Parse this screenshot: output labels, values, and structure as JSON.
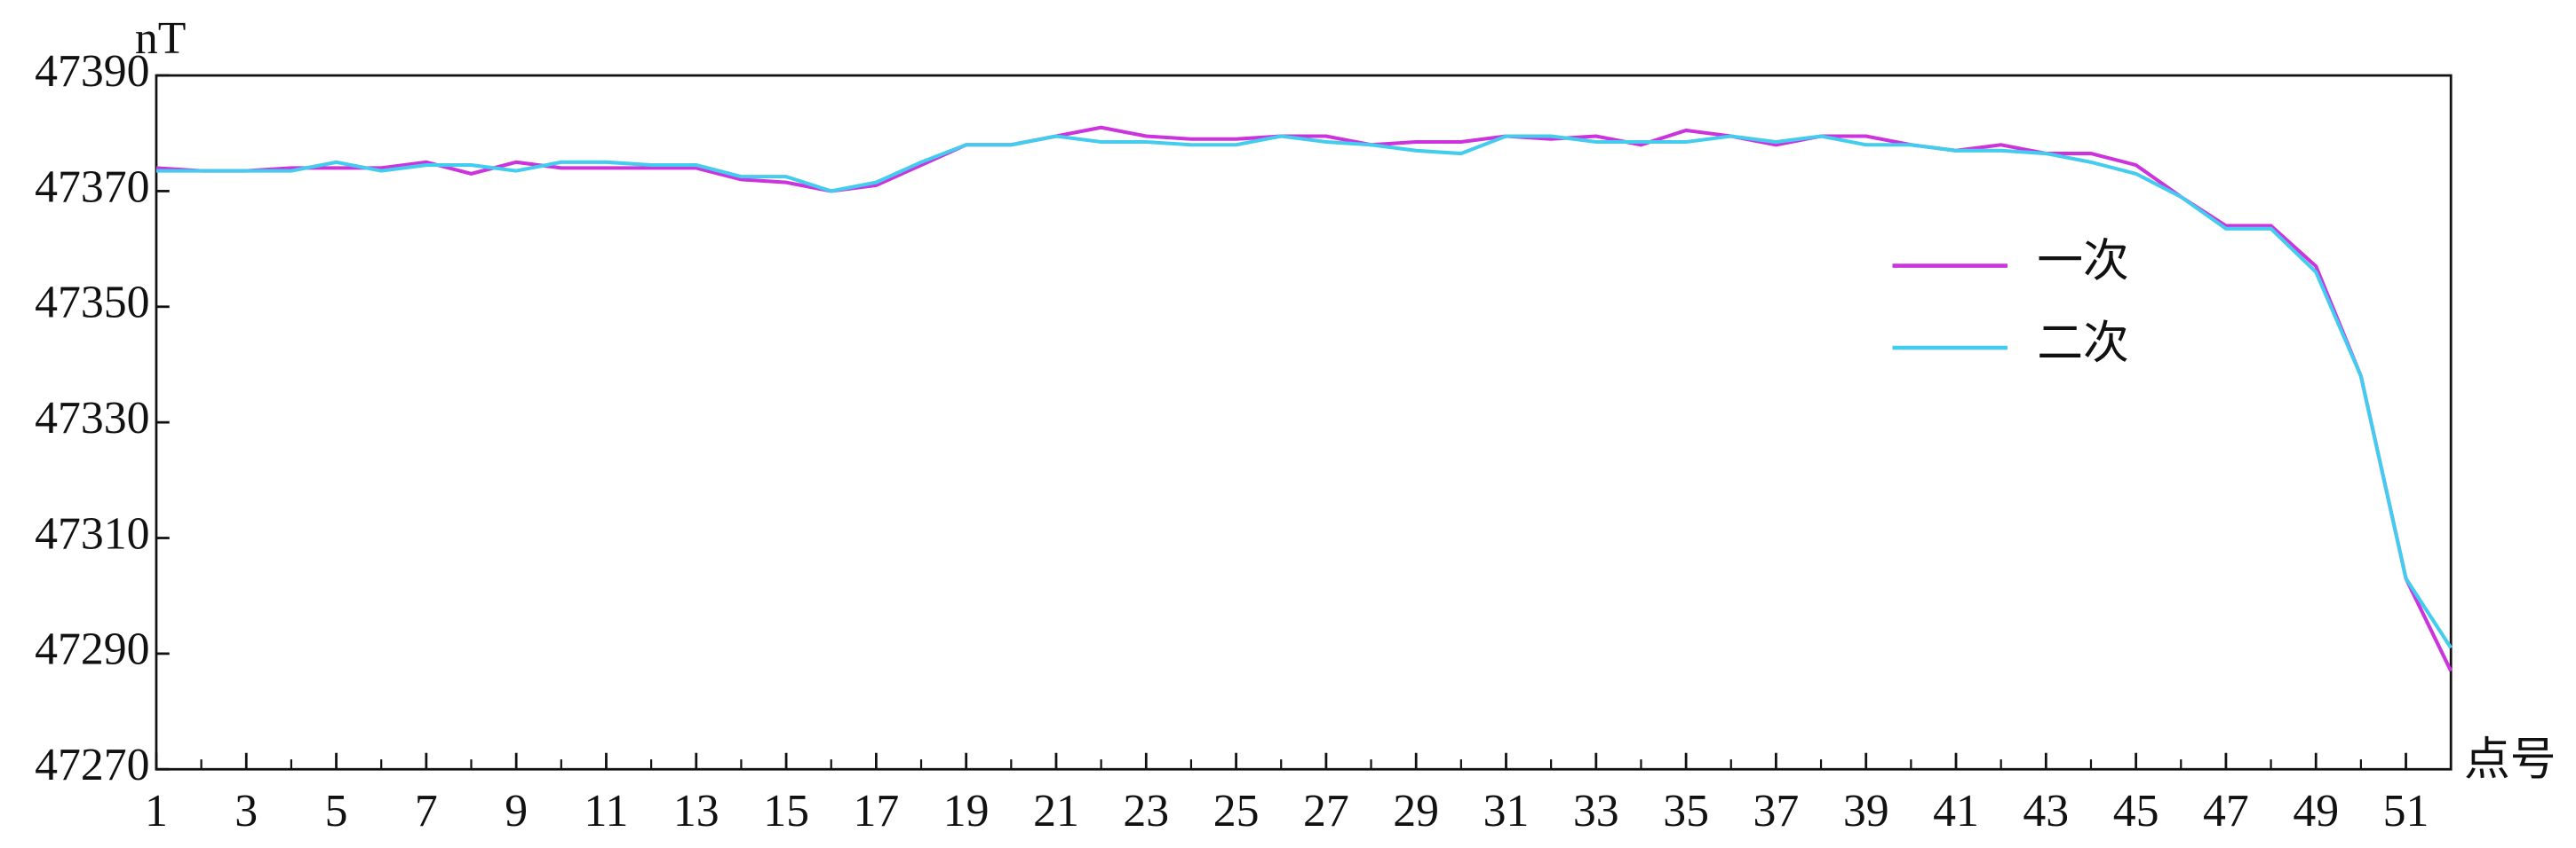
{
  "chart_data": {
    "type": "line",
    "y_label": "nT",
    "x_label": "点号",
    "x": [
      1,
      2,
      3,
      4,
      5,
      6,
      7,
      8,
      9,
      10,
      11,
      12,
      13,
      14,
      15,
      16,
      17,
      18,
      19,
      20,
      21,
      22,
      23,
      24,
      25,
      26,
      27,
      28,
      29,
      30,
      31,
      32,
      33,
      34,
      35,
      36,
      37,
      38,
      39,
      40,
      41,
      42,
      43,
      44,
      45,
      46,
      47,
      48,
      49,
      50,
      51,
      52
    ],
    "xlim": [
      1,
      52
    ],
    "xticks": [
      1,
      3,
      5,
      7,
      9,
      11,
      13,
      15,
      17,
      19,
      21,
      23,
      25,
      27,
      29,
      31,
      33,
      35,
      37,
      39,
      41,
      43,
      45,
      47,
      49,
      51
    ],
    "ylim": [
      47270,
      47390
    ],
    "yticks": [
      47270,
      47290,
      47310,
      47330,
      47350,
      47370,
      47390
    ],
    "legend": "right",
    "series": [
      {
        "name": "一次",
        "color": "#cc33dd",
        "values": [
          47374,
          47373.5,
          47373.5,
          47374,
          47374,
          47374,
          47375,
          47373,
          47375,
          47374,
          47374,
          47374,
          47374,
          47372,
          47371.5,
          47370,
          47371,
          47374.5,
          47378,
          47378,
          47379.5,
          47381,
          47379.5,
          47379,
          47379,
          47379.5,
          47379.5,
          47378,
          47378.5,
          47378.5,
          47379.5,
          47379,
          47379.5,
          47378,
          47380.5,
          47379.5,
          47378,
          47379.5,
          47379.5,
          47378,
          47377,
          47378,
          47376.5,
          47376.5,
          47374.5,
          47369,
          47364,
          47364,
          47357,
          47338,
          47303,
          47287
        ]
      },
      {
        "name": "二次",
        "color": "#44ccee",
        "values": [
          47373.5,
          47373.5,
          47373.5,
          47373.5,
          47375,
          47373.5,
          47374.5,
          47374.5,
          47373.5,
          47375,
          47375,
          47374.5,
          47374.5,
          47372.5,
          47372.5,
          47370,
          47371.5,
          47375,
          47378,
          47378,
          47379.5,
          47378.5,
          47378.5,
          47378,
          47378,
          47379.5,
          47378.5,
          47378,
          47377,
          47376.5,
          47379.5,
          47379.5,
          47378.5,
          47378.5,
          47378.5,
          47379.5,
          47378.5,
          47379.5,
          47378,
          47378,
          47377,
          47377,
          47376.5,
          47375,
          47373,
          47369,
          47363.5,
          47363.5,
          47356,
          47338,
          47303,
          47291
        ]
      }
    ]
  }
}
